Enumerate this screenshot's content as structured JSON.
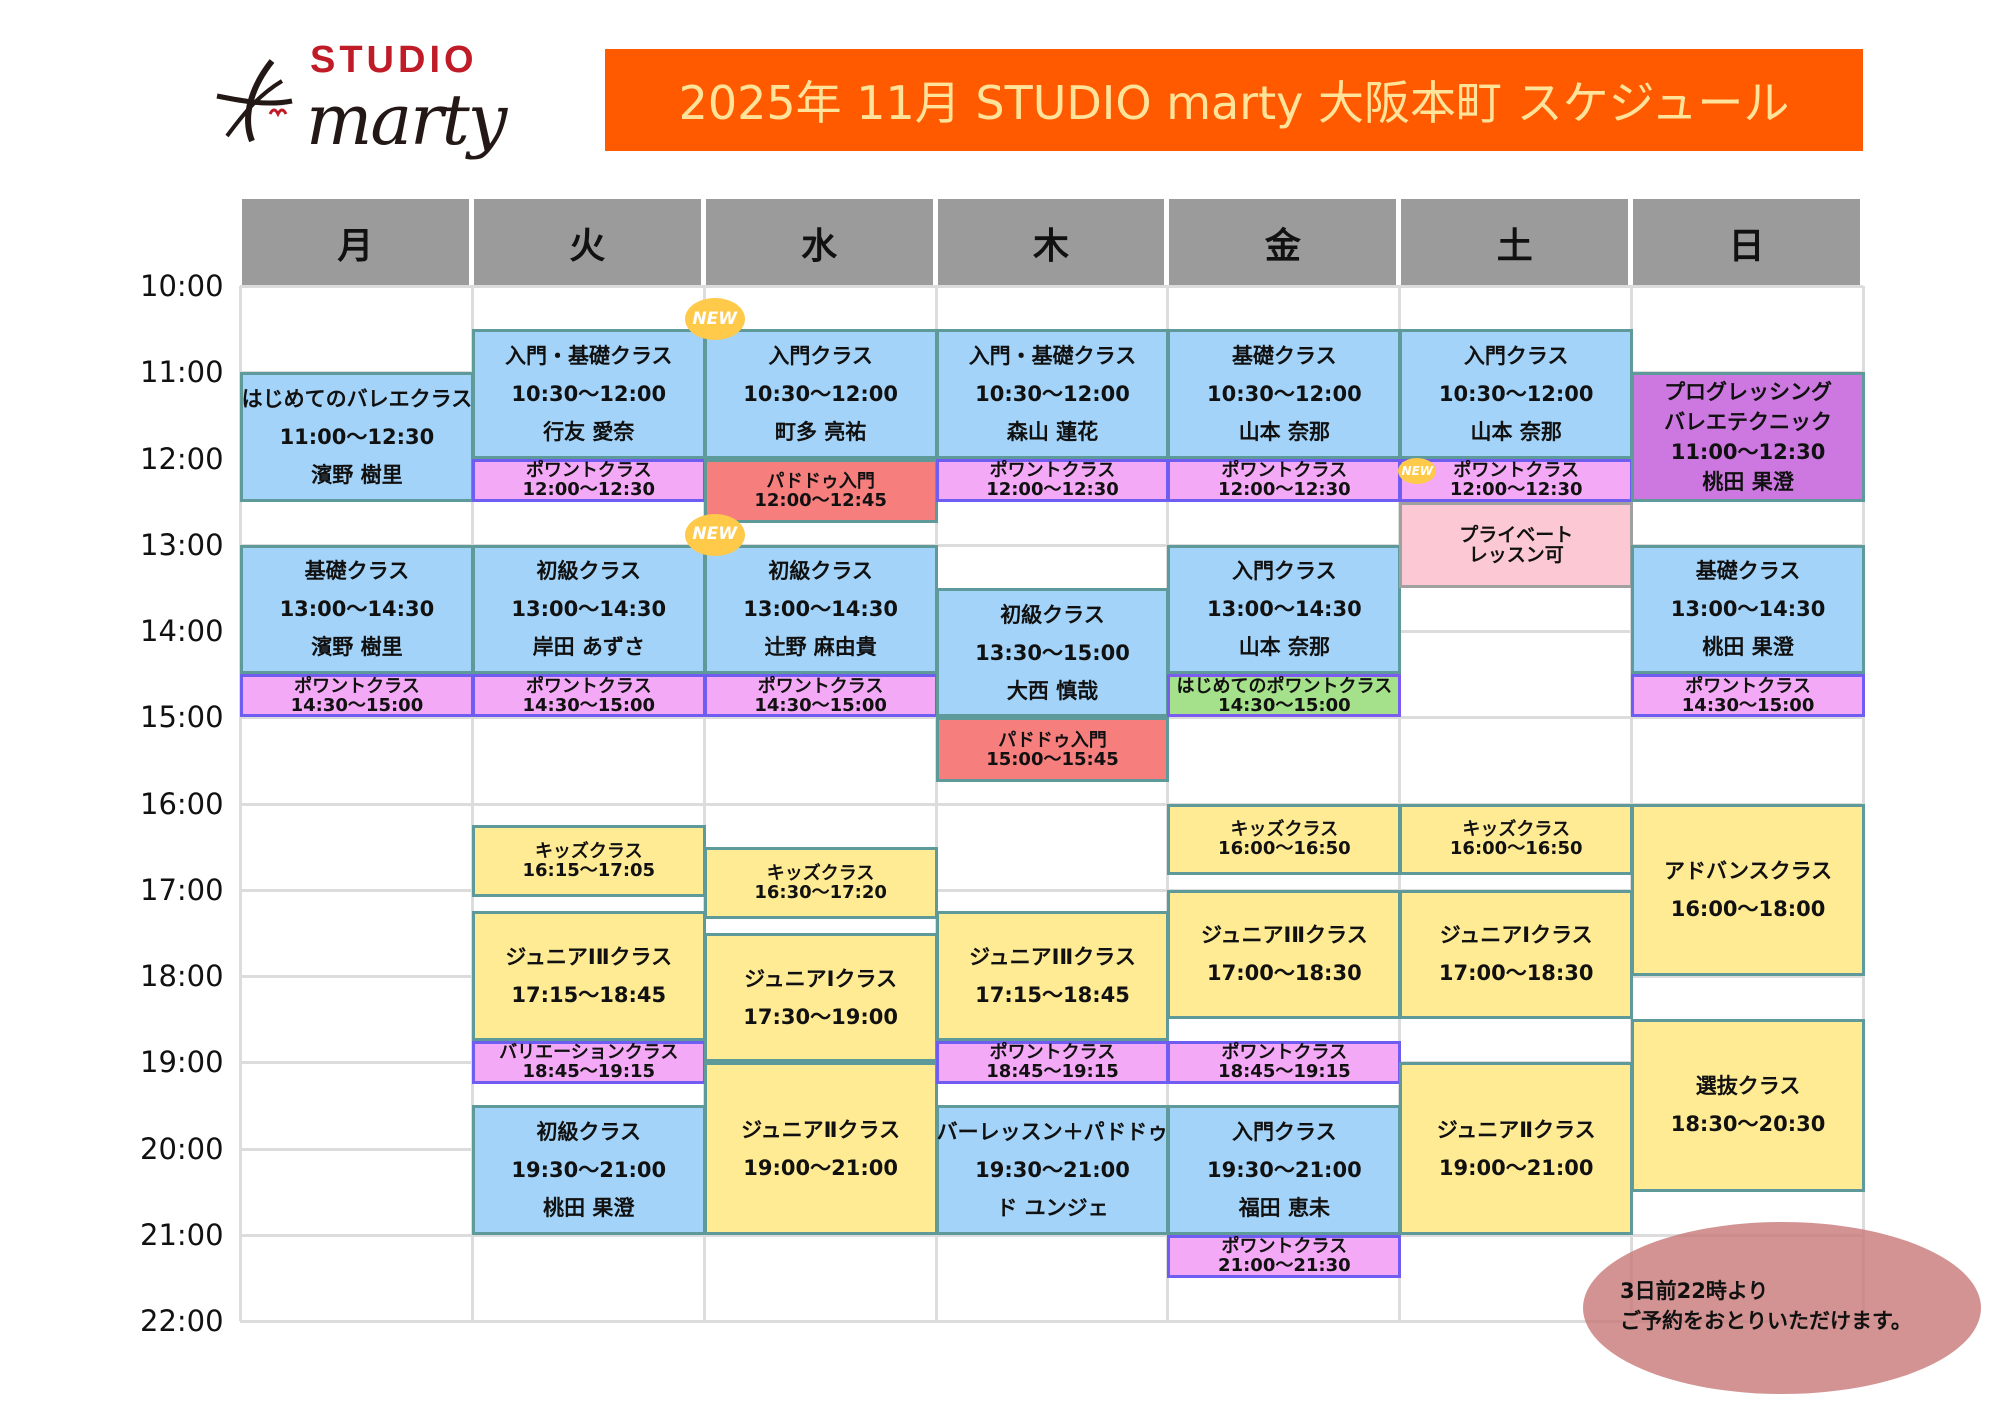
{
  "logo": {
    "text_top": "STUDIO",
    "text_main": "marty",
    "brand_red": "#C01C28"
  },
  "banner": {
    "title": "2025年  11月 STUDIO marty 大阪本町  スケジュール",
    "color": "#FF5A00"
  },
  "days": [
    "月",
    "火",
    "水",
    "木",
    "金",
    "土",
    "日"
  ],
  "hours": [
    "10:00",
    "11:00",
    "12:00",
    "13:00",
    "14:00",
    "15:00",
    "16:00",
    "17:00",
    "18:00",
    "19:00",
    "20:00",
    "21:00",
    "22:00"
  ],
  "colors": {
    "blue": "#A3D3F8",
    "pink": "#F4A9F6",
    "yellow": "#FFEB94",
    "red": "#F67F7E",
    "green": "#A5E08A",
    "purple": "#CD78E0",
    "private": "#FCC8D3"
  },
  "events": [
    {
      "day": 0,
      "color": "blue",
      "lines": [
        "はじめてのバレエクラス",
        "11:00～12:30",
        "濱野 樹里"
      ]
    },
    {
      "day": 0,
      "color": "blue",
      "lines": [
        "基礎クラス",
        "13:00～14:30",
        "濱野 樹里"
      ]
    },
    {
      "day": 0,
      "color": "pink",
      "lines": [
        "ポワントクラス",
        "14:30～15:00"
      ]
    },
    {
      "day": 1,
      "color": "blue",
      "lines": [
        "入門・基礎クラス",
        "10:30～12:00",
        "行友 愛奈"
      ]
    },
    {
      "day": 1,
      "color": "pink",
      "lines": [
        "ポワントクラス",
        "12:00～12:30"
      ]
    },
    {
      "day": 1,
      "color": "blue",
      "lines": [
        "初級クラス",
        "13:00～14:30",
        "岸田 あずさ"
      ]
    },
    {
      "day": 1,
      "color": "pink",
      "lines": [
        "ポワントクラス",
        "14:30～15:00"
      ]
    },
    {
      "day": 1,
      "color": "yellow",
      "lines": [
        "キッズクラス",
        "16:15～17:05"
      ]
    },
    {
      "day": 1,
      "color": "yellow",
      "lines": [
        "ジュニアⅠⅡクラス",
        "17:15～18:45"
      ]
    },
    {
      "day": 1,
      "color": "pink",
      "lines": [
        "バリエーションクラス",
        "18:45～19:15"
      ]
    },
    {
      "day": 1,
      "color": "blue",
      "lines": [
        "初級クラス",
        "19:30～21:00",
        "桃田 果澄"
      ]
    },
    {
      "day": 2,
      "color": "blue",
      "badge": "NEW",
      "lines": [
        "入門クラス",
        "10:30～12:00",
        "町多 亮祐"
      ]
    },
    {
      "day": 2,
      "color": "red",
      "lines": [
        "パドドゥ入門",
        "12:00～12:45"
      ]
    },
    {
      "day": 2,
      "color": "blue",
      "badge": "NEW",
      "lines": [
        "初級クラス",
        "13:00～14:30",
        "辻野 麻由貴"
      ]
    },
    {
      "day": 2,
      "color": "pink",
      "lines": [
        "ポワントクラス",
        "14:30～15:00"
      ]
    },
    {
      "day": 2,
      "color": "yellow",
      "lines": [
        "キッズクラス",
        "16:30～17:20"
      ]
    },
    {
      "day": 2,
      "color": "yellow",
      "lines": [
        "ジュニアⅠクラス",
        "17:30～19:00"
      ]
    },
    {
      "day": 2,
      "color": "yellow",
      "lines": [
        "ジュニアⅡクラス",
        "19:00～21:00"
      ]
    },
    {
      "day": 3,
      "color": "blue",
      "lines": [
        "入門・基礎クラス",
        "10:30～12:00",
        "森山 蓮花"
      ]
    },
    {
      "day": 3,
      "color": "pink",
      "lines": [
        "ポワントクラス",
        "12:00～12:30"
      ]
    },
    {
      "day": 3,
      "color": "blue",
      "lines": [
        "初級クラス",
        "13:30～15:00",
        "大西 慎哉"
      ]
    },
    {
      "day": 3,
      "color": "red",
      "lines": [
        "パドドゥ入門",
        "15:00～15:45"
      ]
    },
    {
      "day": 3,
      "color": "yellow",
      "lines": [
        "ジュニアⅠⅡクラス",
        "17:15～18:45"
      ]
    },
    {
      "day": 3,
      "color": "pink",
      "lines": [
        "ポワントクラス",
        "18:45～19:15"
      ]
    },
    {
      "day": 3,
      "color": "blue",
      "lines": [
        "バーレッスン＋パドドゥ",
        "19:30～21:00",
        "ド ユンジェ"
      ]
    },
    {
      "day": 4,
      "color": "blue",
      "lines": [
        "基礎クラス",
        "10:30～12:00",
        "山本 奈那"
      ]
    },
    {
      "day": 4,
      "color": "pink",
      "lines": [
        "ポワントクラス",
        "12:00～12:30"
      ]
    },
    {
      "day": 4,
      "color": "blue",
      "lines": [
        "入門クラス",
        "13:00～14:30",
        "山本 奈那"
      ]
    },
    {
      "day": 4,
      "color": "green",
      "lines": [
        "はじめてのポワントクラス",
        "14:30～15:00"
      ]
    },
    {
      "day": 4,
      "color": "yellow",
      "lines": [
        "キッズクラス",
        "16:00～16:50"
      ]
    },
    {
      "day": 4,
      "color": "yellow",
      "lines": [
        "ジュニアⅠⅡクラス",
        "17:00～18:30"
      ]
    },
    {
      "day": 4,
      "color": "pink",
      "lines": [
        "ポワントクラス",
        "18:45～19:15"
      ]
    },
    {
      "day": 4,
      "color": "blue",
      "lines": [
        "入門クラス",
        "19:30～21:00",
        "福田 恵未"
      ]
    },
    {
      "day": 4,
      "color": "pink",
      "lines": [
        "ポワントクラス",
        "21:00～21:30"
      ]
    },
    {
      "day": 5,
      "color": "blue",
      "lines": [
        "入門クラス",
        "10:30～12:00",
        "山本 奈那"
      ]
    },
    {
      "day": 5,
      "color": "pink",
      "badge": "NEW",
      "lines": [
        "ポワントクラス",
        "12:00～12:30"
      ]
    },
    {
      "day": 5,
      "color": "private",
      "start": "12:30",
      "end": "13:30",
      "lines": [
        "プライベート",
        "レッスン可"
      ]
    },
    {
      "day": 5,
      "color": "yellow",
      "lines": [
        "キッズクラス",
        "16:00～16:50"
      ]
    },
    {
      "day": 5,
      "color": "yellow",
      "lines": [
        "ジュニアⅠクラス",
        "17:00～18:30"
      ]
    },
    {
      "day": 5,
      "color": "yellow",
      "lines": [
        "ジュニアⅡクラス",
        "19:00～21:00"
      ]
    },
    {
      "day": 6,
      "color": "purple",
      "lines": [
        "プログレッシング",
        "バレエテクニック",
        "11:00～12:30",
        "桃田 果澄"
      ]
    },
    {
      "day": 6,
      "color": "blue",
      "lines": [
        "基礎クラス",
        "13:00～14:30",
        "桃田 果澄"
      ]
    },
    {
      "day": 6,
      "color": "pink",
      "lines": [
        "ポワントクラス",
        "14:30～15:00"
      ]
    },
    {
      "day": 6,
      "color": "yellow",
      "lines": [
        "アドバンスクラス",
        "16:00～18:00"
      ]
    },
    {
      "day": 6,
      "color": "yellow",
      "lines": [
        "選抜クラス",
        "18:30～20:30"
      ]
    }
  ],
  "note": {
    "line1": "3日前22時より",
    "line2": "ご予約をおとりいただけます。",
    "color": "#D49494"
  }
}
